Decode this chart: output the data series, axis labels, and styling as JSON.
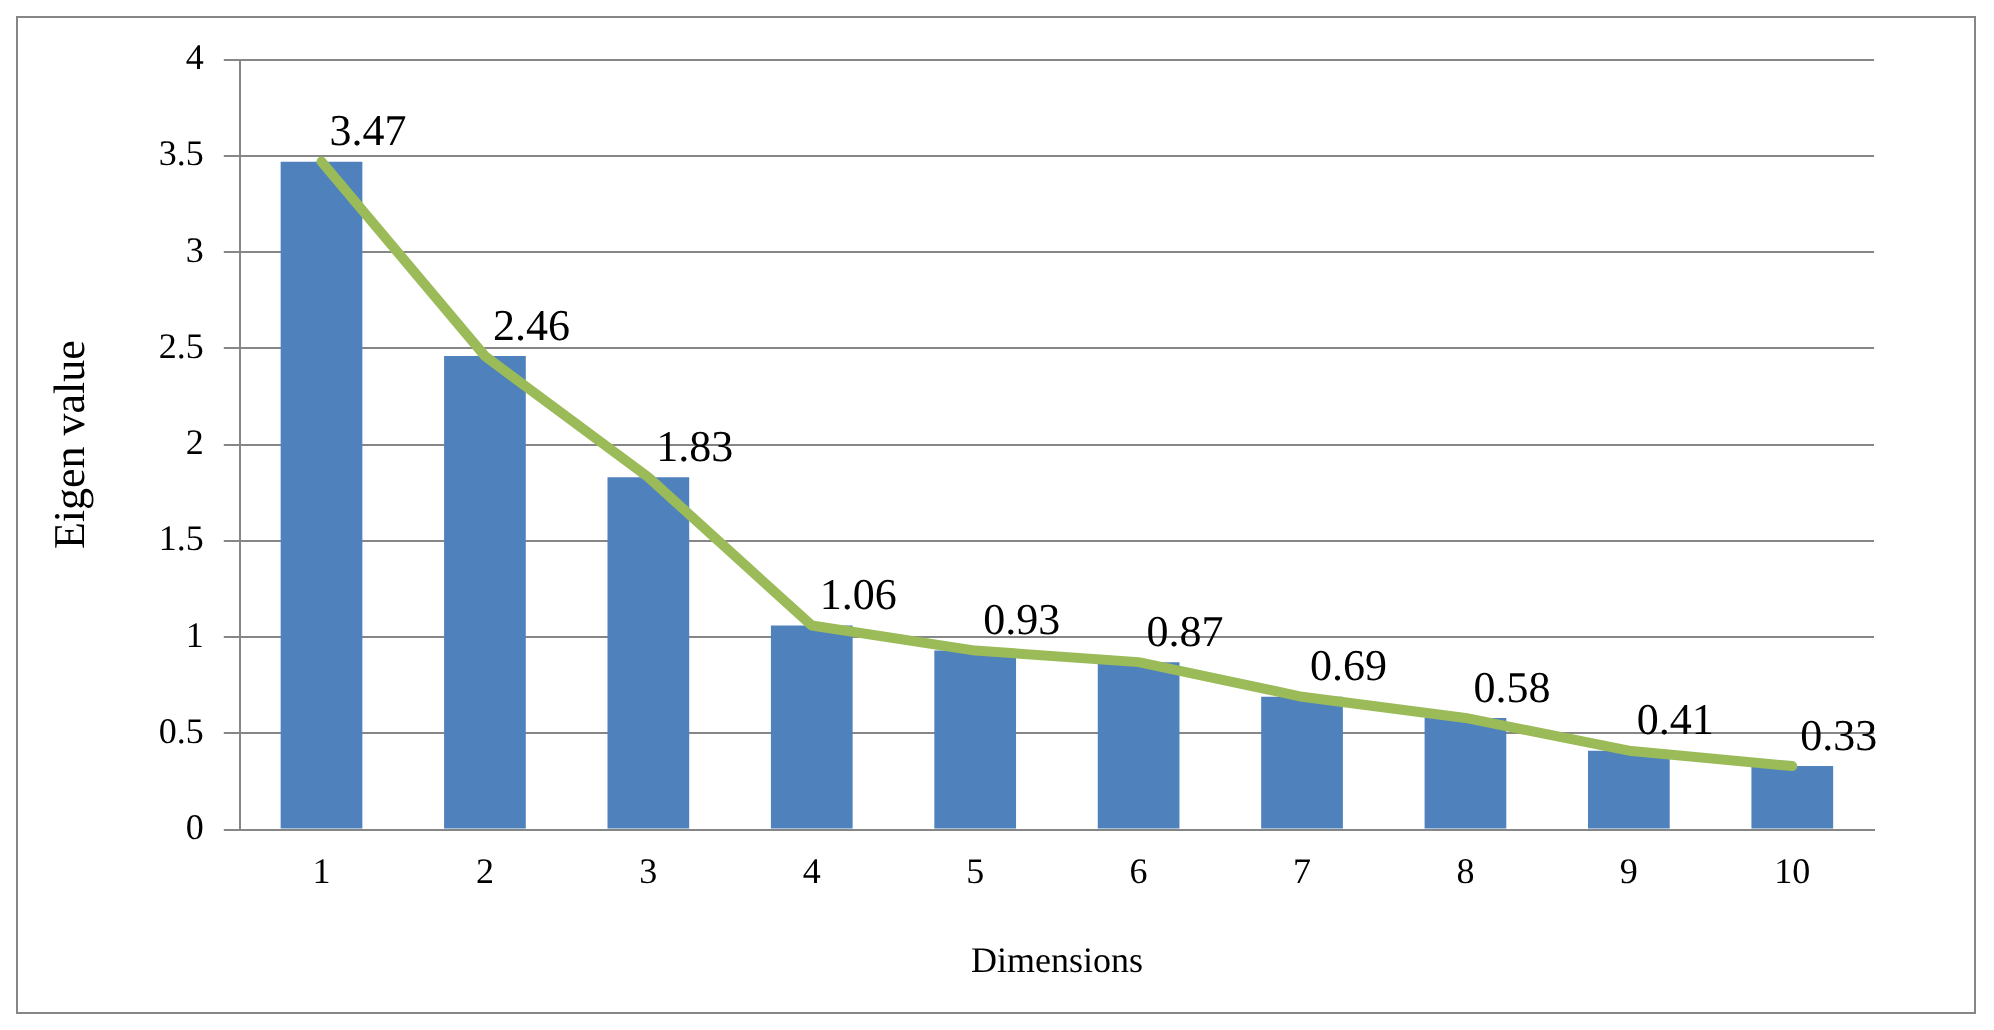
{
  "chart_data": {
    "type": "bar",
    "xlabel": "Dimensions",
    "ylabel": "Eigen value",
    "categories": [
      "1",
      "2",
      "3",
      "4",
      "5",
      "6",
      "7",
      "8",
      "9",
      "10"
    ],
    "series": [
      {
        "color": "#4f81bd",
        "values": [
          3.47,
          2.46,
          1.83,
          1.06,
          0.93,
          0.87,
          0.69,
          0.58,
          0.41,
          0.33
        ]
      },
      {
        "type": "line",
        "color": "#9bbb59",
        "values": [
          3.47,
          2.46,
          1.83,
          1.06,
          0.93,
          0.87,
          0.69,
          0.58,
          0.41,
          0.33
        ],
        "value_labels": [
          "3.47",
          "2.46",
          "1.83",
          "1.06",
          "0.93",
          "0.87",
          "0.69",
          "0.58",
          "0.41",
          "0.33"
        ]
      }
    ],
    "ylim": [
      0,
      4
    ],
    "yticks": [
      0,
      0.5,
      1,
      1.5,
      2,
      2.5,
      3,
      3.5,
      4
    ],
    "grid": "y",
    "legend": false,
    "marker": "none"
  }
}
